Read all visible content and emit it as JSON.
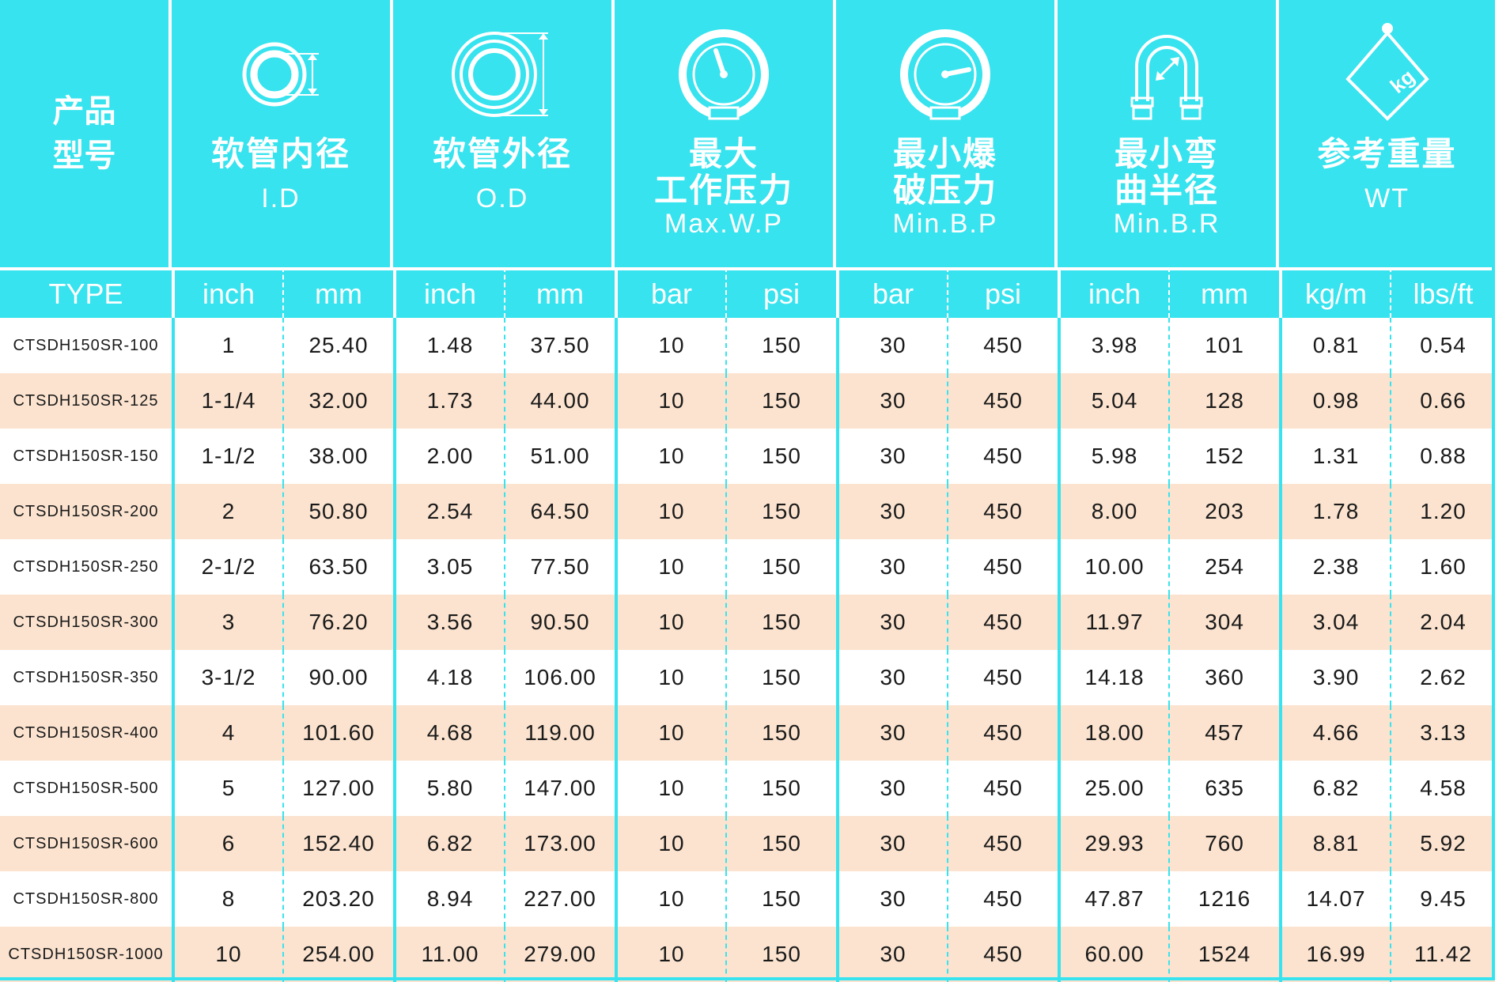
{
  "header": {
    "type_label": "产品\n型号",
    "columns": [
      {
        "cn": "软管内径",
        "en": "I.D",
        "icon": "inner-diameter-icon"
      },
      {
        "cn": "软管外径",
        "en": "O.D",
        "icon": "outer-diameter-icon"
      },
      {
        "cn": "最大\n工作压力",
        "en": "Max.W.P",
        "icon": "pressure-gauge-icon"
      },
      {
        "cn": "最小爆\n破压力",
        "en": "Min.B.P",
        "icon": "burst-gauge-icon"
      },
      {
        "cn": "最小弯\n曲半径",
        "en": "Min.B.R",
        "icon": "bend-radius-icon"
      },
      {
        "cn": "参考重量",
        "en": "WT",
        "icon": "weight-kg-icon"
      }
    ]
  },
  "units": [
    "TYPE",
    "inch",
    "mm",
    "inch",
    "mm",
    "bar",
    "psi",
    "bar",
    "psi",
    "inch",
    "mm",
    "kg/m",
    "lbs/ft"
  ],
  "rows": [
    [
      "CTSDH150SR-100",
      "1",
      "25.40",
      "1.48",
      "37.50",
      "10",
      "150",
      "30",
      "450",
      "3.98",
      "101",
      "0.81",
      "0.54"
    ],
    [
      "CTSDH150SR-125",
      "1-1/4",
      "32.00",
      "1.73",
      "44.00",
      "10",
      "150",
      "30",
      "450",
      "5.04",
      "128",
      "0.98",
      "0.66"
    ],
    [
      "CTSDH150SR-150",
      "1-1/2",
      "38.00",
      "2.00",
      "51.00",
      "10",
      "150",
      "30",
      "450",
      "5.98",
      "152",
      "1.31",
      "0.88"
    ],
    [
      "CTSDH150SR-200",
      "2",
      "50.80",
      "2.54",
      "64.50",
      "10",
      "150",
      "30",
      "450",
      "8.00",
      "203",
      "1.78",
      "1.20"
    ],
    [
      "CTSDH150SR-250",
      "2-1/2",
      "63.50",
      "3.05",
      "77.50",
      "10",
      "150",
      "30",
      "450",
      "10.00",
      "254",
      "2.38",
      "1.60"
    ],
    [
      "CTSDH150SR-300",
      "3",
      "76.20",
      "3.56",
      "90.50",
      "10",
      "150",
      "30",
      "450",
      "11.97",
      "304",
      "3.04",
      "2.04"
    ],
    [
      "CTSDH150SR-350",
      "3-1/2",
      "90.00",
      "4.18",
      "106.00",
      "10",
      "150",
      "30",
      "450",
      "14.18",
      "360",
      "3.90",
      "2.62"
    ],
    [
      "CTSDH150SR-400",
      "4",
      "101.60",
      "4.68",
      "119.00",
      "10",
      "150",
      "30",
      "450",
      "18.00",
      "457",
      "4.66",
      "3.13"
    ],
    [
      "CTSDH150SR-500",
      "5",
      "127.00",
      "5.80",
      "147.00",
      "10",
      "150",
      "30",
      "450",
      "25.00",
      "635",
      "6.82",
      "4.58"
    ],
    [
      "CTSDH150SR-600",
      "6",
      "152.40",
      "6.82",
      "173.00",
      "10",
      "150",
      "30",
      "450",
      "29.93",
      "760",
      "8.81",
      "5.92"
    ],
    [
      "CTSDH150SR-800",
      "8",
      "203.20",
      "8.94",
      "227.00",
      "10",
      "150",
      "30",
      "450",
      "47.87",
      "1216",
      "14.07",
      "9.45"
    ],
    [
      "CTSDH150SR-1000",
      "10",
      "254.00",
      "11.00",
      "279.00",
      "10",
      "150",
      "30",
      "450",
      "60.00",
      "1524",
      "16.99",
      "11.42"
    ]
  ],
  "colors": {
    "header_bg": "#36e3ee",
    "row_alt_bg": "#fbe3cf",
    "row_bg": "#ffffff",
    "text": "#1a1a1a"
  },
  "icons": {
    "kg_label": "kg"
  }
}
